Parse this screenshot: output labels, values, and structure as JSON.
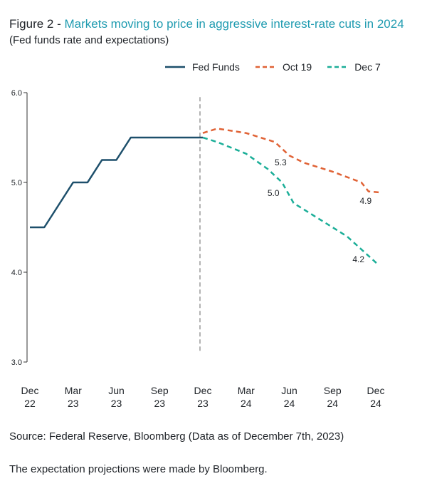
{
  "header": {
    "title_prefix": "Figure 2 - ",
    "title_main": "Markets moving to price in aggressive interest-rate cuts in 2024",
    "subtitle": "(Fed funds rate and expectations)"
  },
  "footer": {
    "source": "Source: Federal Reserve, Bloomberg (Data as of December 7th, 2023)",
    "note": "The expectation projections were made by Bloomberg."
  },
  "colors": {
    "fed_funds": "#1d4f6b",
    "oct19": "#e06235",
    "dec7": "#1bae98",
    "divider": "#b3b3b3",
    "axis": "#333333"
  },
  "chart_data": {
    "type": "line",
    "title": "Markets moving to price in aggressive interest-rate cuts in 2024",
    "ylim": [
      3.0,
      6.0
    ],
    "yticks": [
      "3.0",
      "4.0",
      "5.0",
      "6.0"
    ],
    "ytick_values": [
      3.0,
      4.0,
      5.0,
      6.0
    ],
    "xlim": [
      0,
      24
    ],
    "xticks": [
      {
        "x": 0,
        "line1": "Dec",
        "line2": "22"
      },
      {
        "x": 3,
        "line1": "Mar",
        "line2": "23"
      },
      {
        "x": 6,
        "line1": "Jun",
        "line2": "23"
      },
      {
        "x": 9,
        "line1": "Sep",
        "line2": "23"
      },
      {
        "x": 12,
        "line1": "Dec",
        "line2": "23"
      },
      {
        "x": 15,
        "line1": "Mar",
        "line2": "24"
      },
      {
        "x": 18,
        "line1": "Jun",
        "line2": "24"
      },
      {
        "x": 21,
        "line1": "Sep",
        "line2": "24"
      },
      {
        "x": 24,
        "line1": "Dec",
        "line2": "24"
      }
    ],
    "divider_x": 12,
    "legend_position": "top-right",
    "grid": false,
    "series": [
      {
        "name": "Fed Funds",
        "style": "solid",
        "points": [
          [
            0,
            4.5
          ],
          [
            1,
            4.5
          ],
          [
            2,
            4.75
          ],
          [
            3,
            5.0
          ],
          [
            4,
            5.0
          ],
          [
            5,
            5.25
          ],
          [
            6,
            5.25
          ],
          [
            7,
            5.5
          ],
          [
            12,
            5.5
          ]
        ]
      },
      {
        "name": "Oct 19",
        "style": "dashed",
        "points": [
          [
            12,
            5.55
          ],
          [
            13,
            5.6
          ],
          [
            15,
            5.55
          ],
          [
            17,
            5.45
          ],
          [
            18,
            5.3
          ],
          [
            19,
            5.22
          ],
          [
            21,
            5.12
          ],
          [
            23,
            5.0
          ],
          [
            23.5,
            4.9
          ],
          [
            24.2,
            4.89
          ]
        ]
      },
      {
        "name": "Dec 7",
        "style": "dashed",
        "points": [
          [
            12,
            5.5
          ],
          [
            13,
            5.45
          ],
          [
            15,
            5.32
          ],
          [
            16.5,
            5.15
          ],
          [
            17.5,
            5.0
          ],
          [
            18.3,
            4.77
          ],
          [
            20,
            4.6
          ],
          [
            22,
            4.4
          ],
          [
            24.2,
            4.08
          ]
        ]
      }
    ],
    "annotations": [
      {
        "text": "5.3",
        "x": 17.4,
        "y": 5.19,
        "series": "Oct 19"
      },
      {
        "text": "4.9",
        "x": 23.3,
        "y": 4.76,
        "series": "Oct 19"
      },
      {
        "text": "5.0",
        "x": 16.9,
        "y": 4.85,
        "series": "Dec 7"
      },
      {
        "text": "4.2",
        "x": 22.8,
        "y": 4.11,
        "series": "Dec 7"
      }
    ]
  }
}
